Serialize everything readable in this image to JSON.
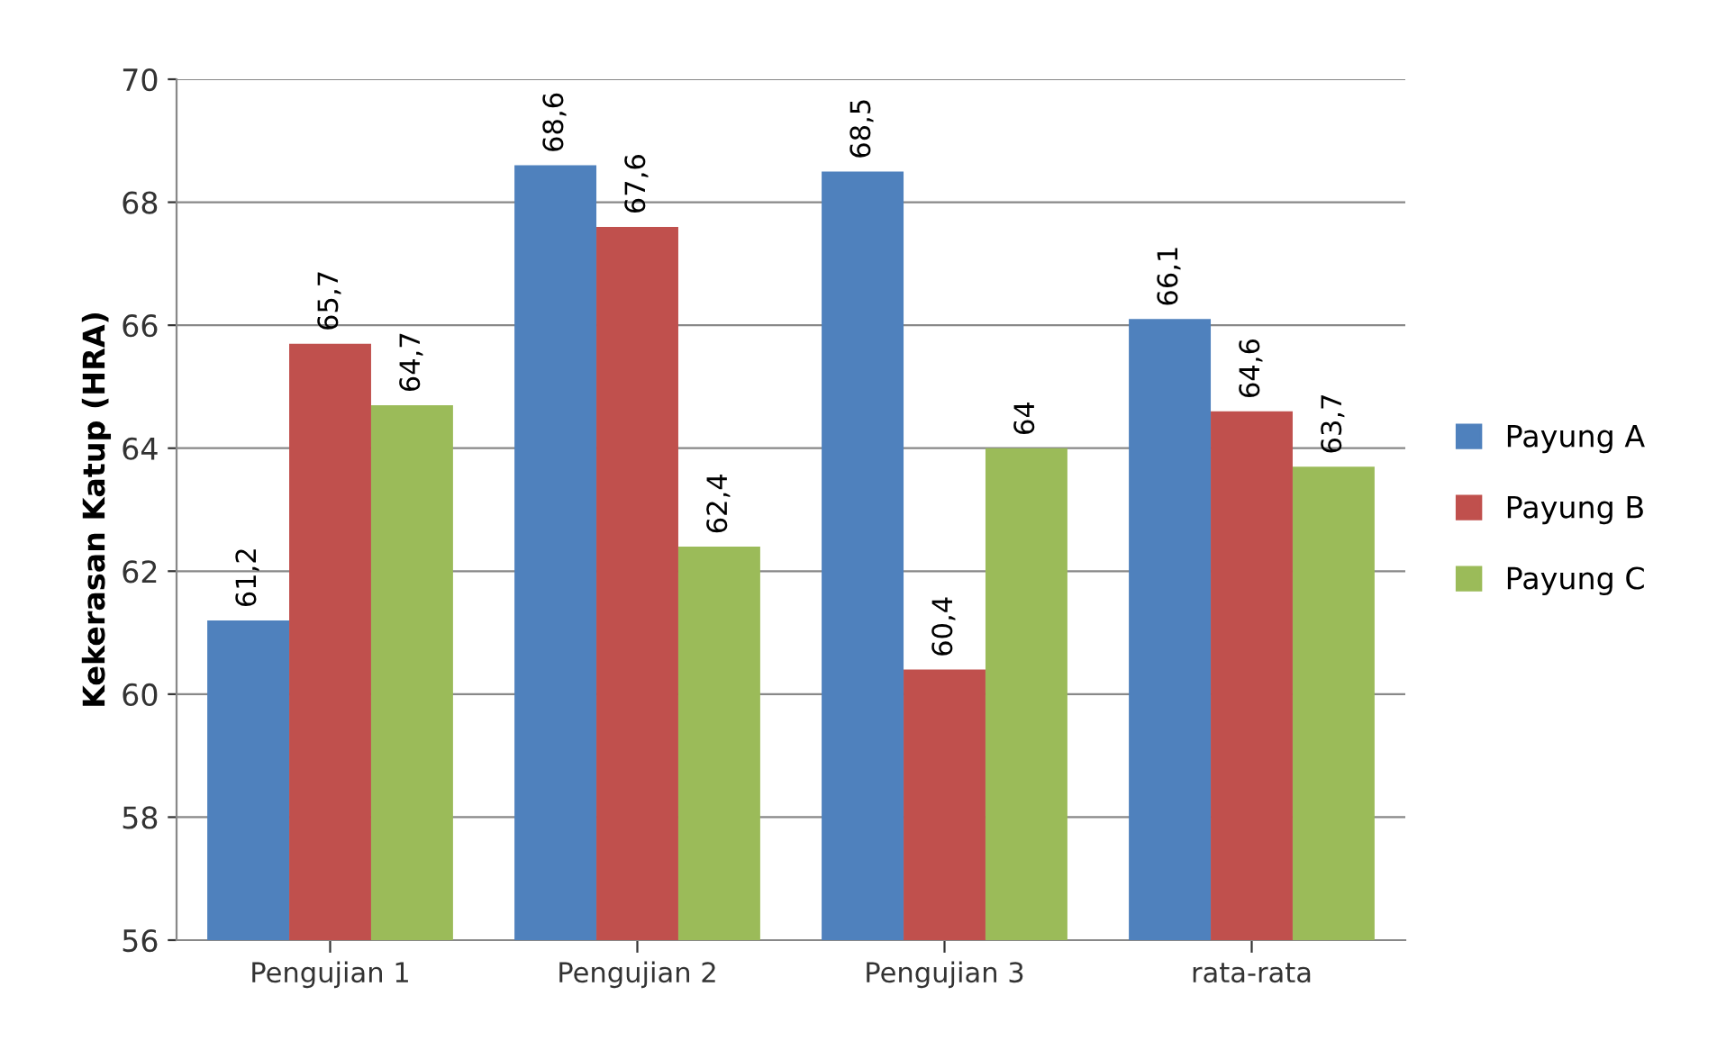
{
  "chart_data": {
    "type": "bar",
    "ylabel": "Kekerasan Katup (HRA)",
    "categories": [
      "Pengujian 1",
      "Pengujian 2",
      "Pengujian 3",
      "rata-rata"
    ],
    "series": [
      {
        "name": "Payung A",
        "color": "#4f81bd",
        "values": [
          61.2,
          68.6,
          68.5,
          66.1
        ],
        "value_labels": [
          "61,2",
          "68,6",
          "68,5",
          "66,1"
        ]
      },
      {
        "name": "Payung B",
        "color": "#c0504d",
        "values": [
          65.7,
          67.6,
          60.4,
          64.6
        ],
        "value_labels": [
          "65,7",
          "67,6",
          "60,4",
          "64,6"
        ]
      },
      {
        "name": "Payung C",
        "color": "#9bbb59",
        "values": [
          64.7,
          62.4,
          64,
          63.7
        ],
        "value_labels": [
          "64,7",
          "62,4",
          "64",
          "63,7"
        ]
      }
    ],
    "ylim": [
      56,
      70
    ],
    "yticks": [
      56,
      58,
      60,
      62,
      64,
      66,
      68,
      70
    ],
    "grid": "y",
    "legend": "right"
  }
}
